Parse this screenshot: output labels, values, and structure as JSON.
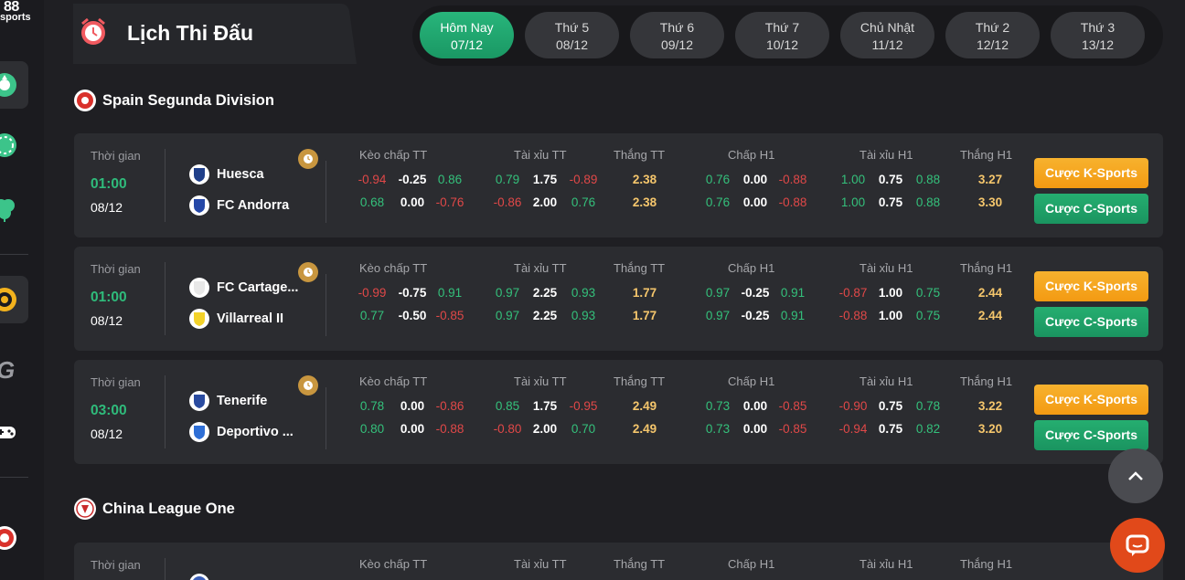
{
  "sidebar": {
    "logo_line1": "88",
    "logo_line2": "sports"
  },
  "header": {
    "title": "Lịch Thi Đấu",
    "dates": [
      {
        "day": "Hôm Nay",
        "date": "07/12",
        "active": true
      },
      {
        "day": "Thứ 5",
        "date": "08/12"
      },
      {
        "day": "Thứ 6",
        "date": "09/12"
      },
      {
        "day": "Thứ 7",
        "date": "10/12"
      },
      {
        "day": "Chủ Nhật",
        "date": "11/12"
      },
      {
        "day": "Thứ 2",
        "date": "12/12"
      },
      {
        "day": "Thứ 3",
        "date": "13/12"
      }
    ]
  },
  "labels": {
    "time": "Thời gian",
    "handicap_ft": "Kèo chấp TT",
    "ou_ft": "Tài xỉu TT",
    "win_ft": "Thắng TT",
    "handicap_h1": "Chấp H1",
    "ou_h1": "Tài xỉu H1",
    "win_h1": "Thắng H1",
    "bet_k": "Cược K-Sports",
    "bet_c": "Cược C-Sports"
  },
  "leagues": [
    {
      "name": "Spain Segunda Division",
      "matches": [
        {
          "time": "01:00",
          "date": "08/12",
          "home": "Huesca",
          "away": "FC Andorra",
          "rows": [
            {
              "hc": [
                "-0.94",
                "-0.25",
                "0.86"
              ],
              "ou": [
                "0.79",
                "1.75",
                "-0.89"
              ],
              "win": "2.38",
              "hc1": [
                "0.76",
                "0.00",
                "-0.88"
              ],
              "ou1": [
                "1.00",
                "0.75",
                "0.88"
              ],
              "win1": "3.27"
            },
            {
              "hc": [
                "0.68",
                "0.00",
                "-0.76"
              ],
              "ou": [
                "-0.86",
                "2.00",
                "0.76"
              ],
              "win": "2.38",
              "hc1": [
                "0.76",
                "0.00",
                "-0.88"
              ],
              "ou1": [
                "1.00",
                "0.75",
                "0.88"
              ],
              "win1": "3.30"
            }
          ]
        },
        {
          "time": "01:00",
          "date": "08/12",
          "home": "FC Cartage...",
          "away": "Villarreal II",
          "rows": [
            {
              "hc": [
                "-0.99",
                "-0.75",
                "0.91"
              ],
              "ou": [
                "0.97",
                "2.25",
                "0.93"
              ],
              "win": "1.77",
              "hc1": [
                "0.97",
                "-0.25",
                "0.91"
              ],
              "ou1": [
                "-0.87",
                "1.00",
                "0.75"
              ],
              "win1": "2.44"
            },
            {
              "hc": [
                "0.77",
                "-0.50",
                "-0.85"
              ],
              "ou": [
                "0.97",
                "2.25",
                "0.93"
              ],
              "win": "1.77",
              "hc1": [
                "0.97",
                "-0.25",
                "0.91"
              ],
              "ou1": [
                "-0.88",
                "1.00",
                "0.75"
              ],
              "win1": "2.44"
            }
          ]
        },
        {
          "time": "03:00",
          "date": "08/12",
          "home": "Tenerife",
          "away": "Deportivo ...",
          "rows": [
            {
              "hc": [
                "0.78",
                "0.00",
                "-0.86"
              ],
              "ou": [
                "0.85",
                "1.75",
                "-0.95"
              ],
              "win": "2.49",
              "hc1": [
                "0.73",
                "0.00",
                "-0.85"
              ],
              "ou1": [
                "-0.90",
                "0.75",
                "0.78"
              ],
              "win1": "3.22"
            },
            {
              "hc": [
                "0.80",
                "0.00",
                "-0.88"
              ],
              "ou": [
                "-0.80",
                "2.00",
                "0.70"
              ],
              "win": "2.49",
              "hc1": [
                "0.73",
                "0.00",
                "-0.85"
              ],
              "ou1": [
                "-0.94",
                "0.75",
                "0.82"
              ],
              "win1": "3.20"
            }
          ]
        }
      ]
    },
    {
      "name": "China League One",
      "matches": []
    }
  ],
  "colors": {
    "accent_green": "#2fbb7b",
    "negative_red": "#e04848",
    "positive_green": "#34c07b",
    "win_yellow": "#f5c66c",
    "k_sports_orange": "#f5a41f",
    "c_sports_green": "#1fa168"
  }
}
